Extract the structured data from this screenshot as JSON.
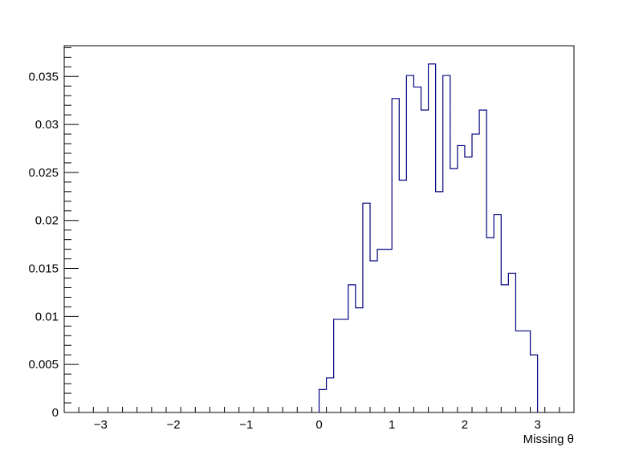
{
  "chart_data": {
    "type": "histogram",
    "title": "",
    "xlabel": "Missing θ",
    "ylabel": "",
    "xlim": [
      -3.5,
      3.5
    ],
    "ylim": [
      0,
      0.0382
    ],
    "x_ticks": [
      {
        "value": -3,
        "label": "−3"
      },
      {
        "value": -2,
        "label": "−2"
      },
      {
        "value": -1,
        "label": "−1"
      },
      {
        "value": 0,
        "label": "0"
      },
      {
        "value": 1,
        "label": "1"
      },
      {
        "value": 2,
        "label": "2"
      },
      {
        "value": 3,
        "label": "3"
      }
    ],
    "y_ticks": [
      {
        "value": 0,
        "label": "0"
      },
      {
        "value": 0.005,
        "label": "0.005"
      },
      {
        "value": 0.01,
        "label": "0.01"
      },
      {
        "value": 0.015,
        "label": "0.015"
      },
      {
        "value": 0.02,
        "label": "0.02"
      },
      {
        "value": 0.025,
        "label": "0.025"
      },
      {
        "value": 0.03,
        "label": "0.03"
      },
      {
        "value": 0.035,
        "label": "0.035"
      }
    ],
    "bin_width": 0.1,
    "bin_start": 0.0,
    "values": [
      0.0024,
      0.0036,
      0.0097,
      0.0097,
      0.0133,
      0.0109,
      0.0218,
      0.0158,
      0.017,
      0.017,
      0.0327,
      0.0242,
      0.0351,
      0.0339,
      0.0315,
      0.0363,
      0.023,
      0.0351,
      0.0254,
      0.0278,
      0.0266,
      0.029,
      0.0315,
      0.0182,
      0.0206,
      0.0133,
      0.0145,
      0.0085,
      0.0085,
      0.006
    ],
    "line_color": "#000080",
    "grid": false,
    "legend": "none"
  }
}
